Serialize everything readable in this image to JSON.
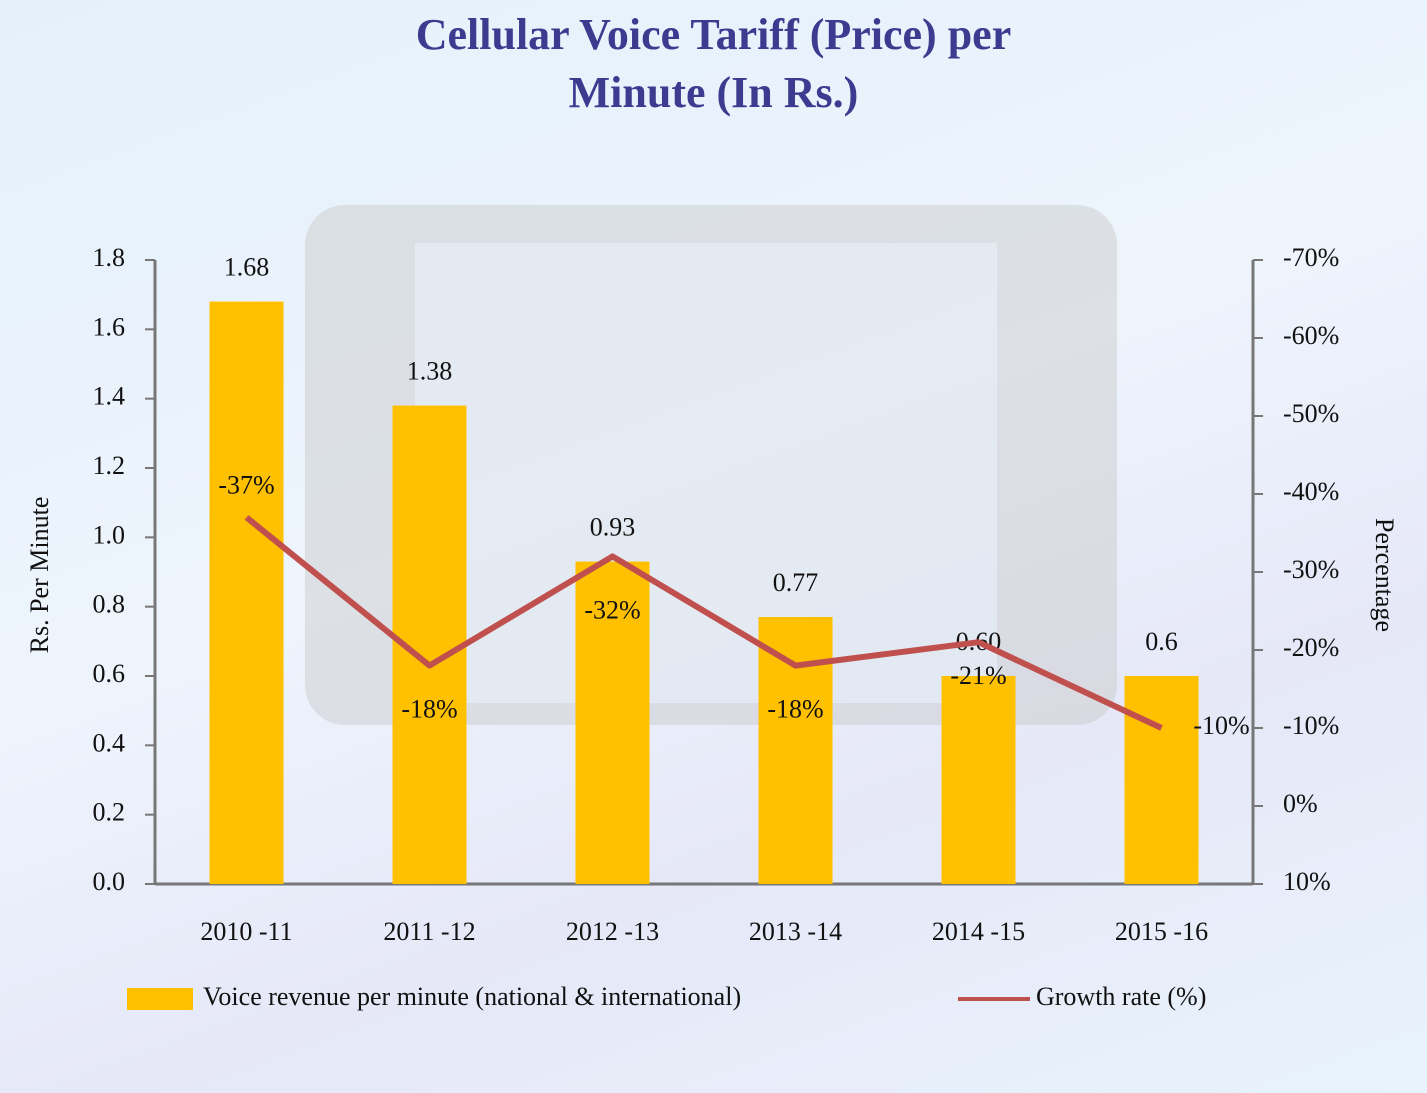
{
  "chart_data": {
    "type": "combo",
    "title": "Cellular Voice Tariff (Price) per Minute (In Rs.)",
    "y_label": "Rs. Per Minute",
    "y2_label": "Percentage",
    "categories": [
      "2010 -11",
      "2011 -12",
      "2012 -13",
      "2013 -14",
      "2014 -15",
      "2015 -16"
    ],
    "series": [
      {
        "name": "Voice revenue per minute (national & international)",
        "type": "bar",
        "color": "#ffc000",
        "values": [
          1.68,
          1.38,
          0.93,
          0.77,
          0.6,
          0.6
        ],
        "value_labels": [
          "1.68",
          "1.38",
          "0.93",
          "0.77",
          "0.60",
          "0.6"
        ]
      },
      {
        "name": "Growth rate (%)",
        "type": "line",
        "axis": "y2",
        "color": "#c0504d",
        "values": [
          -37,
          -18,
          -32,
          -18,
          -21,
          -10
        ],
        "value_labels": [
          "-37%",
          "-18%",
          "-32%",
          "-18%",
          "-21%",
          "-10%"
        ]
      }
    ],
    "ylim": [
      0,
      1.8
    ],
    "yticks": [
      {
        "value": 0,
        "label": "0.0"
      },
      0.2,
      0.4,
      0.6,
      0.8,
      {
        "value": 1,
        "label": "1.0"
      },
      1.2,
      1.4,
      1.6,
      1.8
    ],
    "y2lim": [
      10,
      -70
    ],
    "y2ticks": [
      {
        "value": 10,
        "label": "10%"
      },
      {
        "value": 0,
        "label": "0%"
      },
      {
        "value": -10,
        "label": "-10%"
      },
      {
        "value": -20,
        "label": "-20%"
      },
      {
        "value": -30,
        "label": "-30%"
      },
      {
        "value": -40,
        "label": "-40%"
      },
      {
        "value": -50,
        "label": "-50%"
      },
      {
        "value": -60,
        "label": "-60%"
      },
      {
        "value": -70,
        "label": "-70%"
      }
    ],
    "legend": "bottom"
  }
}
